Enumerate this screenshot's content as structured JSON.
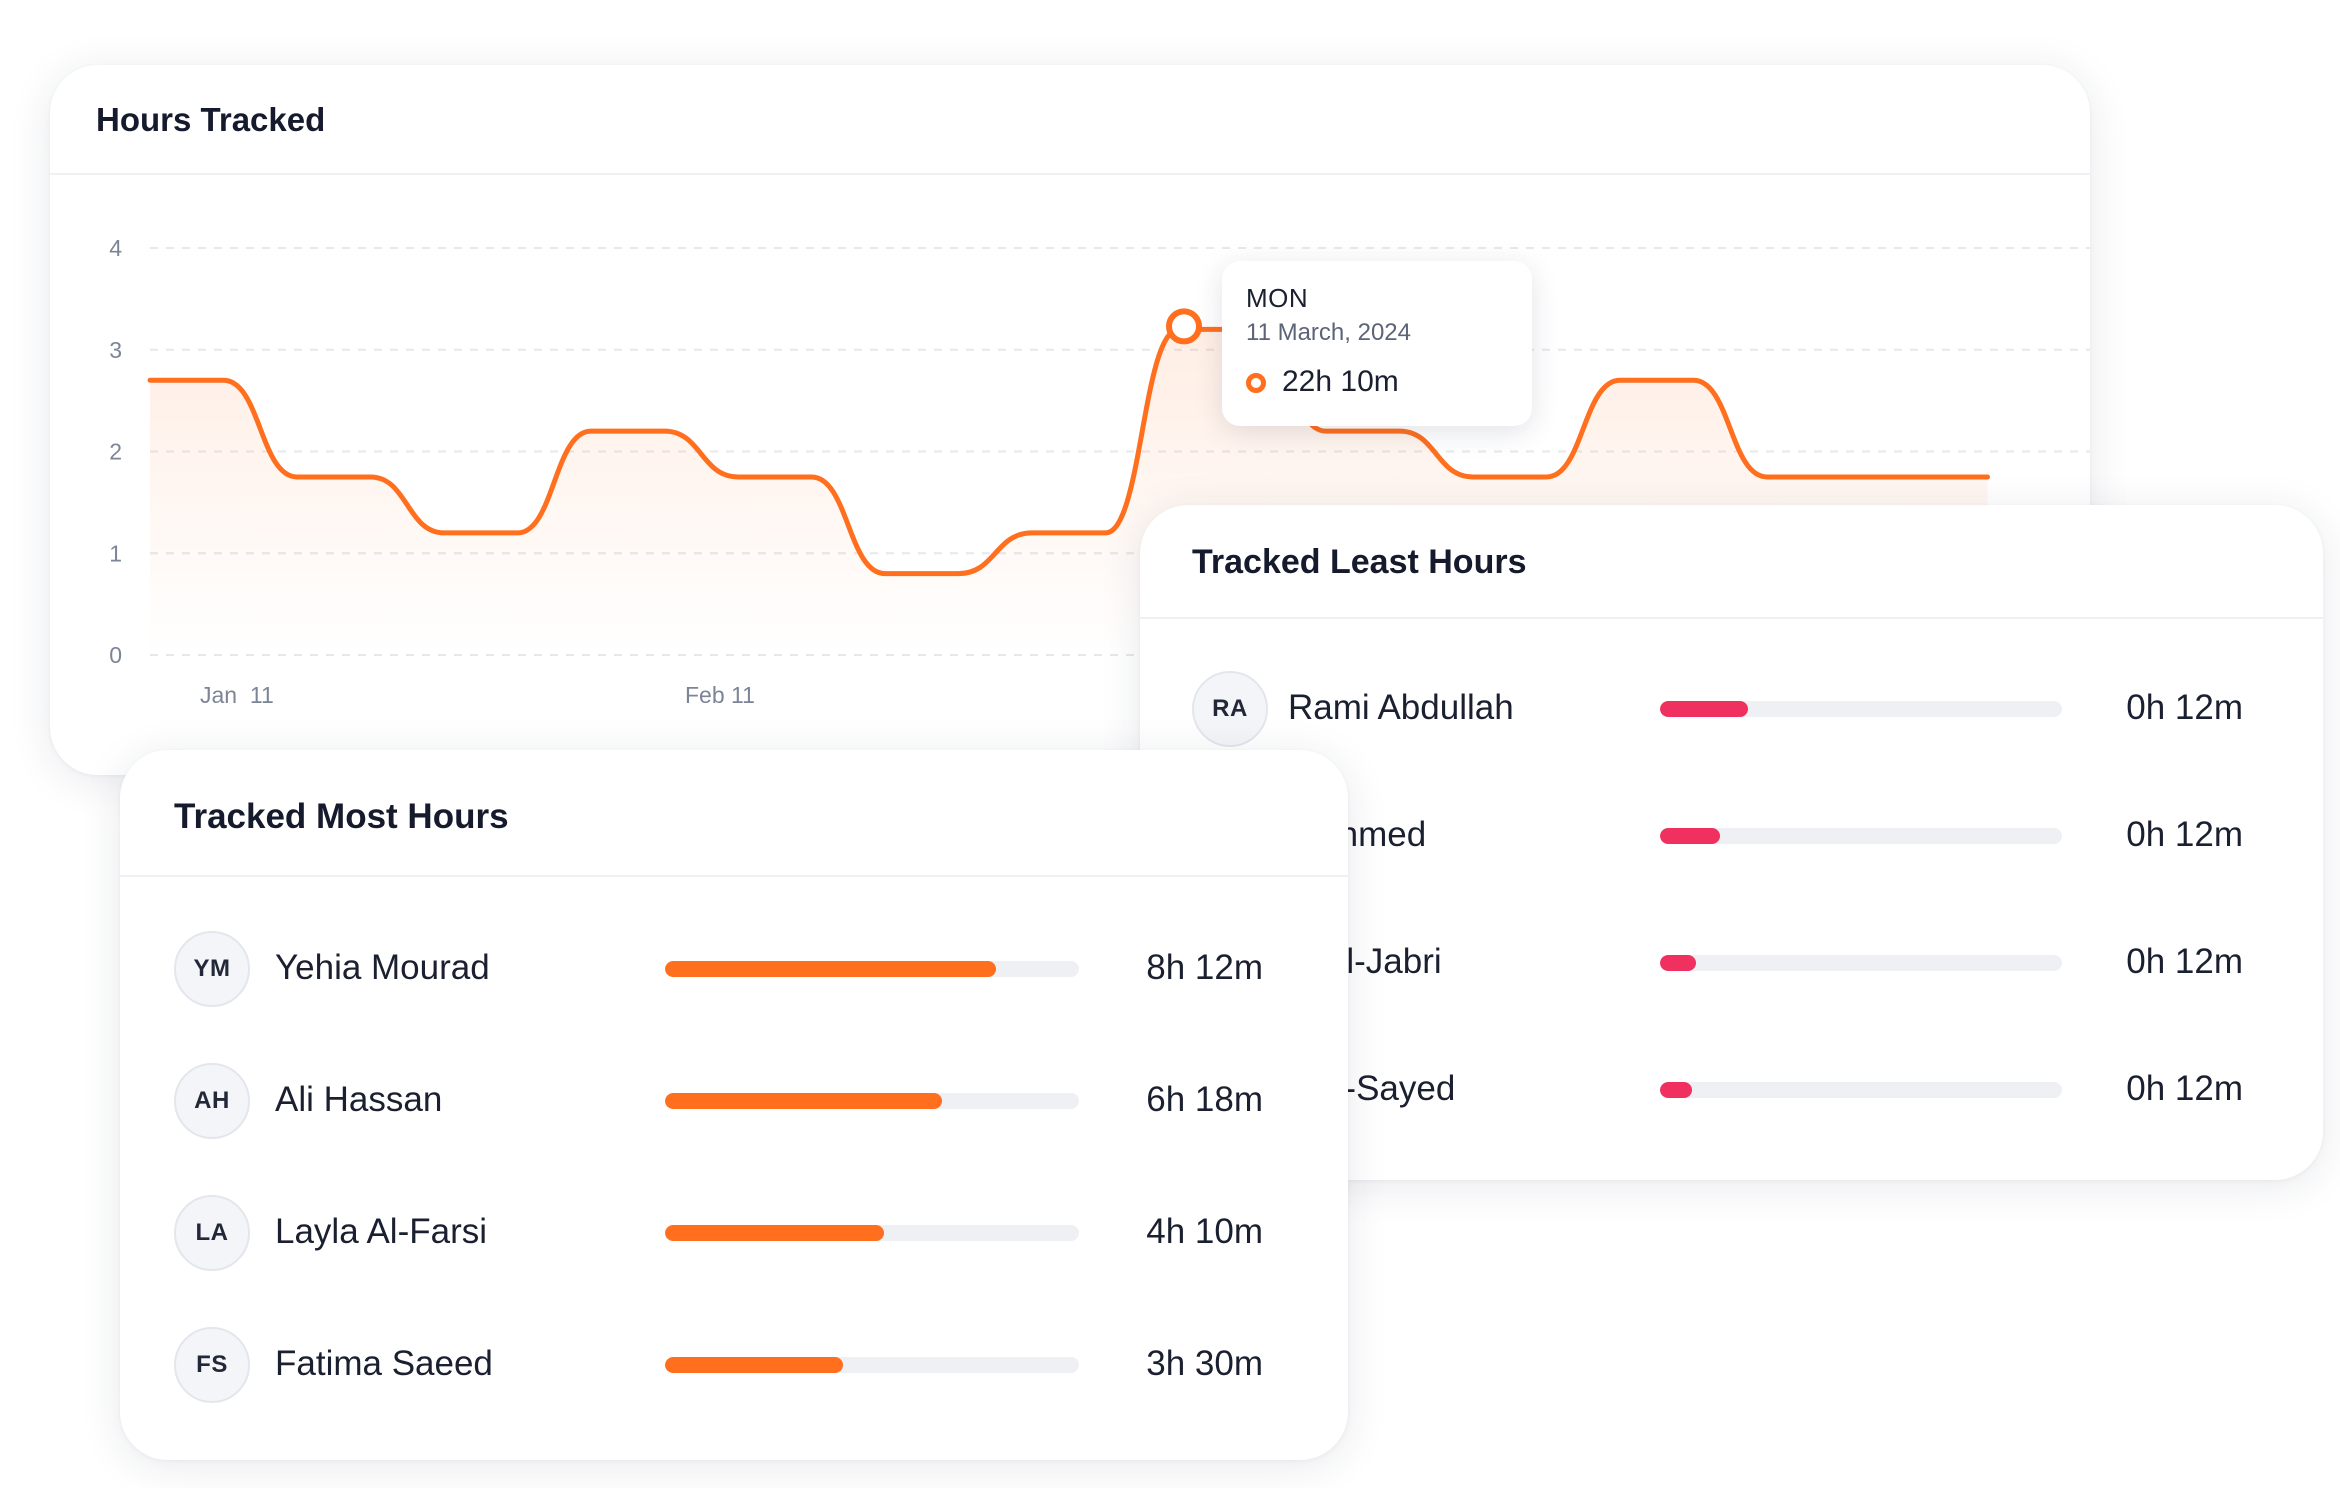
{
  "hours_tracked": {
    "title": "Hours Tracked",
    "chart_data": {
      "type": "line",
      "x_tick_labels": [
        "Jan  11",
        "Feb 11"
      ],
      "y_ticks": [
        0,
        1,
        2,
        3,
        4
      ],
      "ylim": [
        0,
        4
      ],
      "grid": true,
      "series": [
        {
          "color": "#ff6f1e",
          "values": [
            2.7,
            2.7,
            1.75,
            1.75,
            1.2,
            1.2,
            2.2,
            2.2,
            1.75,
            1.75,
            0.8,
            0.8,
            1.2,
            1.2,
            3.2,
            3.2,
            2.2,
            2.2,
            1.75,
            1.75,
            2.7,
            2.7,
            1.75,
            1.75,
            1.75,
            1.75
          ]
        }
      ],
      "highlight_index": 14
    },
    "tooltip": {
      "day": "MON",
      "date": "11 March, 2024",
      "value": "22h 10m"
    }
  },
  "least_hours": {
    "title": "Tracked Least Hours",
    "bar_color": "#f0315f",
    "rows": [
      {
        "initials": "RA",
        "name": "Rami Abdullah",
        "time": "0h 12m",
        "fraction": 0.22
      },
      {
        "initials": "",
        "name": "q Ahmed",
        "time": "0h 12m",
        "fraction": 0.15
      },
      {
        "initials": "",
        "name": "ia Al-Jabri",
        "time": "0h 12m",
        "fraction": 0.09
      },
      {
        "initials": "",
        "name": "s Al-Sayed",
        "time": "0h 12m",
        "fraction": 0.08
      }
    ]
  },
  "most_hours": {
    "title": "Tracked Most Hours",
    "bar_color": "#ff6f1e",
    "rows": [
      {
        "initials": "YM",
        "name": "Yehia Mourad",
        "time": "8h 12m",
        "fraction": 0.8
      },
      {
        "initials": "AH",
        "name": "Ali Hassan",
        "time": "6h 18m",
        "fraction": 0.67
      },
      {
        "initials": "LA",
        "name": "Layla Al-Farsi",
        "time": "4h 10m",
        "fraction": 0.53
      },
      {
        "initials": "FS",
        "name": "Fatima Saeed",
        "time": "3h 30m",
        "fraction": 0.43
      }
    ]
  }
}
